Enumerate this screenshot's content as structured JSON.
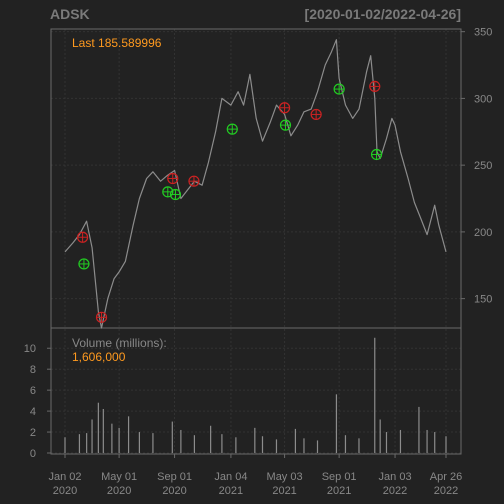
{
  "colors": {
    "background": "#222222",
    "panel_border": "#6a6a6a",
    "grid": "#333333",
    "text": "#888888",
    "title": "#7a7a7a",
    "price_line": "#8c8c8c",
    "last_text": "#ff9a1f",
    "buy_marker": "#22cc22",
    "sell_marker": "#cc2222",
    "volume_bar": "#8c8c8c"
  },
  "chart_data": {
    "type": "line",
    "title": "ADSK",
    "date_range": "[2020-01-02/2022-04-26]",
    "last_label": "Last 185.589996",
    "volume_label": "Volume (millions):",
    "volume_value": "1,606,000",
    "price_axis": {
      "ticks": [
        150,
        200,
        250,
        300,
        350
      ],
      "ylim": [
        128,
        352
      ]
    },
    "volume_axis": {
      "ticks": [
        0,
        2,
        4,
        6,
        8,
        10
      ],
      "ylim": [
        0,
        11
      ]
    },
    "x_ticks": [
      {
        "date": "2020-01-02",
        "label_top": "Jan 02",
        "label_bottom": "2020"
      },
      {
        "date": "2020-05-01",
        "label_top": "May 01",
        "label_bottom": "2020"
      },
      {
        "date": "2020-09-01",
        "label_top": "Sep 01",
        "label_bottom": "2020"
      },
      {
        "date": "2021-01-04",
        "label_top": "Jan 04",
        "label_bottom": "2021"
      },
      {
        "date": "2021-05-03",
        "label_top": "May 03",
        "label_bottom": "2021"
      },
      {
        "date": "2021-09-01",
        "label_top": "Sep 01",
        "label_bottom": "2021"
      },
      {
        "date": "2022-01-03",
        "label_top": "Jan 03",
        "label_bottom": "2022"
      },
      {
        "date": "2022-04-26",
        "label_top": "Apr 26",
        "label_bottom": "2022"
      }
    ],
    "price_series": [
      {
        "date": "2020-01-02",
        "close": 185
      },
      {
        "date": "2020-01-20",
        "close": 192
      },
      {
        "date": "2020-02-03",
        "close": 198
      },
      {
        "date": "2020-02-19",
        "close": 208
      },
      {
        "date": "2020-03-02",
        "close": 188
      },
      {
        "date": "2020-03-16",
        "close": 140
      },
      {
        "date": "2020-03-23",
        "close": 128
      },
      {
        "date": "2020-04-06",
        "close": 150
      },
      {
        "date": "2020-04-20",
        "close": 165
      },
      {
        "date": "2020-05-01",
        "close": 170
      },
      {
        "date": "2020-05-15",
        "close": 178
      },
      {
        "date": "2020-06-01",
        "close": 205
      },
      {
        "date": "2020-06-15",
        "close": 225
      },
      {
        "date": "2020-07-01",
        "close": 240
      },
      {
        "date": "2020-07-15",
        "close": 245
      },
      {
        "date": "2020-08-01",
        "close": 238
      },
      {
        "date": "2020-08-15",
        "close": 242
      },
      {
        "date": "2020-09-01",
        "close": 246
      },
      {
        "date": "2020-09-15",
        "close": 225
      },
      {
        "date": "2020-10-01",
        "close": 232
      },
      {
        "date": "2020-10-15",
        "close": 238
      },
      {
        "date": "2020-11-01",
        "close": 235
      },
      {
        "date": "2020-11-15",
        "close": 252
      },
      {
        "date": "2020-12-01",
        "close": 275
      },
      {
        "date": "2020-12-15",
        "close": 300
      },
      {
        "date": "2021-01-04",
        "close": 295
      },
      {
        "date": "2021-01-20",
        "close": 305
      },
      {
        "date": "2021-02-01",
        "close": 295
      },
      {
        "date": "2021-02-15",
        "close": 318
      },
      {
        "date": "2021-03-01",
        "close": 285
      },
      {
        "date": "2021-03-15",
        "close": 268
      },
      {
        "date": "2021-04-01",
        "close": 282
      },
      {
        "date": "2021-04-15",
        "close": 295
      },
      {
        "date": "2021-05-03",
        "close": 288
      },
      {
        "date": "2021-05-17",
        "close": 272
      },
      {
        "date": "2021-06-01",
        "close": 280
      },
      {
        "date": "2021-06-15",
        "close": 290
      },
      {
        "date": "2021-07-01",
        "close": 292
      },
      {
        "date": "2021-07-15",
        "close": 305
      },
      {
        "date": "2021-08-01",
        "close": 325
      },
      {
        "date": "2021-08-15",
        "close": 335
      },
      {
        "date": "2021-08-26",
        "close": 344
      },
      {
        "date": "2021-09-01",
        "close": 315
      },
      {
        "date": "2021-09-15",
        "close": 295
      },
      {
        "date": "2021-10-01",
        "close": 285
      },
      {
        "date": "2021-10-15",
        "close": 292
      },
      {
        "date": "2021-11-01",
        "close": 320
      },
      {
        "date": "2021-11-10",
        "close": 332
      },
      {
        "date": "2021-11-19",
        "close": 300
      },
      {
        "date": "2021-11-24",
        "close": 260
      },
      {
        "date": "2021-12-01",
        "close": 255
      },
      {
        "date": "2021-12-15",
        "close": 270
      },
      {
        "date": "2021-12-27",
        "close": 285
      },
      {
        "date": "2022-01-03",
        "close": 280
      },
      {
        "date": "2022-01-15",
        "close": 260
      },
      {
        "date": "2022-02-01",
        "close": 240
      },
      {
        "date": "2022-02-15",
        "close": 222
      },
      {
        "date": "2022-03-01",
        "close": 210
      },
      {
        "date": "2022-03-15",
        "close": 198
      },
      {
        "date": "2022-04-01",
        "close": 220
      },
      {
        "date": "2022-04-10",
        "close": 205
      },
      {
        "date": "2022-04-26",
        "close": 185
      }
    ],
    "signals": [
      {
        "date": "2020-02-10",
        "price": 196,
        "type": "sell"
      },
      {
        "date": "2020-02-13",
        "price": 176,
        "type": "buy"
      },
      {
        "date": "2020-03-23",
        "price": 136,
        "type": "sell"
      },
      {
        "date": "2020-08-17",
        "price": 230,
        "type": "buy"
      },
      {
        "date": "2020-08-28",
        "price": 240,
        "type": "sell"
      },
      {
        "date": "2020-09-03",
        "price": 228,
        "type": "buy"
      },
      {
        "date": "2020-10-14",
        "price": 238,
        "type": "sell"
      },
      {
        "date": "2021-01-07",
        "price": 277,
        "type": "buy"
      },
      {
        "date": "2021-05-03",
        "price": 293,
        "type": "sell"
      },
      {
        "date": "2021-05-05",
        "price": 280,
        "type": "buy"
      },
      {
        "date": "2021-07-12",
        "price": 288,
        "type": "sell"
      },
      {
        "date": "2021-09-01",
        "price": 307,
        "type": "buy"
      },
      {
        "date": "2021-11-19",
        "price": 309,
        "type": "sell"
      },
      {
        "date": "2021-11-23",
        "price": 258,
        "type": "buy"
      }
    ],
    "volume_series": [
      {
        "date": "2020-01-02",
        "vol": 1.5
      },
      {
        "date": "2020-02-03",
        "vol": 1.8
      },
      {
        "date": "2020-02-19",
        "vol": 1.9
      },
      {
        "date": "2020-03-02",
        "vol": 3.2
      },
      {
        "date": "2020-03-16",
        "vol": 4.8
      },
      {
        "date": "2020-03-27",
        "vol": 4.2
      },
      {
        "date": "2020-04-15",
        "vol": 2.8
      },
      {
        "date": "2020-05-01",
        "vol": 2.4
      },
      {
        "date": "2020-05-22",
        "vol": 3.5
      },
      {
        "date": "2020-06-15",
        "vol": 2.0
      },
      {
        "date": "2020-07-15",
        "vol": 1.9
      },
      {
        "date": "2020-08-27",
        "vol": 3.0
      },
      {
        "date": "2020-09-15",
        "vol": 2.2
      },
      {
        "date": "2020-10-15",
        "vol": 1.7
      },
      {
        "date": "2020-11-20",
        "vol": 2.6
      },
      {
        "date": "2020-12-15",
        "vol": 1.8
      },
      {
        "date": "2021-01-15",
        "vol": 1.5
      },
      {
        "date": "2021-02-26",
        "vol": 2.4
      },
      {
        "date": "2021-03-15",
        "vol": 1.6
      },
      {
        "date": "2021-04-15",
        "vol": 1.3
      },
      {
        "date": "2021-05-27",
        "vol": 2.3
      },
      {
        "date": "2021-06-15",
        "vol": 1.4
      },
      {
        "date": "2021-07-15",
        "vol": 1.2
      },
      {
        "date": "2021-08-26",
        "vol": 5.6
      },
      {
        "date": "2021-09-15",
        "vol": 1.7
      },
      {
        "date": "2021-10-15",
        "vol": 1.4
      },
      {
        "date": "2021-11-19",
        "vol": 11.0
      },
      {
        "date": "2021-12-01",
        "vol": 3.2
      },
      {
        "date": "2021-12-15",
        "vol": 2.0
      },
      {
        "date": "2022-01-15",
        "vol": 2.2
      },
      {
        "date": "2022-02-25",
        "vol": 4.4
      },
      {
        "date": "2022-03-15",
        "vol": 2.2
      },
      {
        "date": "2022-04-01",
        "vol": 2.0
      },
      {
        "date": "2022-04-26",
        "vol": 1.6
      }
    ]
  }
}
